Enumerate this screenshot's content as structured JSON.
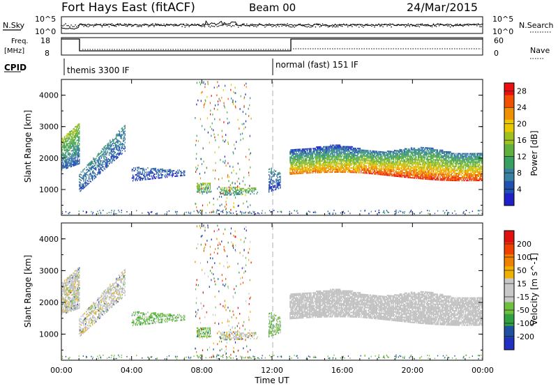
{
  "header": {
    "station": "Fort Hays East (fitACF)",
    "beam": "Beam 00",
    "date": "24/Mar/2015"
  },
  "summary_panel": {
    "nsky_label": "N.Sky",
    "nsearch_label": "N.Search",
    "left_ticks": [
      "10^5",
      "10^0"
    ],
    "right_ticks": [
      "10^5",
      "10^0"
    ],
    "freq_label": "Freq.",
    "freq_unit": "[MHz]",
    "freq_ticks": [
      "18",
      "8"
    ],
    "nave_label": "Nave",
    "nave_ticks": [
      "60",
      "0"
    ],
    "cpid_label": "CPID",
    "cpid_segments": [
      "themis 3300 IF",
      "normal (fast) 151 IF"
    ]
  },
  "colors": {
    "power_scale": [
      "#2020c8",
      "#2050b0",
      "#3a80a0",
      "#38a060",
      "#60b040",
      "#a0c020",
      "#e8c800",
      "#f09000",
      "#f05000",
      "#e81010"
    ],
    "velocity_scale": [
      "#2030c0",
      "#2050a0",
      "#30a040",
      "#70c040",
      "#c8c8c8",
      "#c8c8c8",
      "#f0b000",
      "#f08000",
      "#f04000",
      "#e01010"
    ],
    "grey_scatter": "#c0c0c0"
  },
  "chart_data": [
    {
      "type": "heatmap",
      "title": "",
      "panel": "power",
      "ylabel": "Slant Range [km]",
      "ylim": [
        180,
        4500
      ],
      "yticks": [
        "1000",
        "2000",
        "3000",
        "4000"
      ],
      "xlim": [
        "00:00",
        "24:00"
      ],
      "colorbar_label": "Power [dB]",
      "colorbar_ticks": [
        "4",
        "8",
        "12",
        "16",
        "20",
        "24",
        "28"
      ],
      "colorbar_range": [
        0,
        30
      ]
    },
    {
      "type": "heatmap",
      "title": "",
      "panel": "velocity",
      "ylabel": "Slant Range [km]",
      "ylim": [
        180,
        4500
      ],
      "yticks": [
        "1000",
        "2000",
        "3000",
        "4000"
      ],
      "xlim": [
        "00:00",
        "24:00"
      ],
      "xticks": [
        "00:00",
        "04:00",
        "08:00",
        "12:00",
        "16:00",
        "20:00",
        "00:00"
      ],
      "xlabel": "Time UT",
      "colorbar_label": "Velocity [m s^-1]",
      "colorbar_ticks": [
        "200",
        "100",
        "50",
        "15",
        "-15",
        "-50",
        "-100",
        "-200"
      ],
      "colorbar_range": [
        -250,
        250
      ]
    }
  ]
}
